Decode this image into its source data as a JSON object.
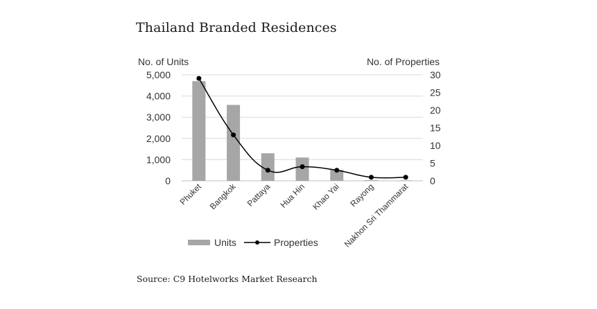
{
  "chart_data": {
    "type": "bar",
    "title": "Thailand Branded Residences",
    "source": "Source: C9 Hotelworks Market Research",
    "categories": [
      "Phuket",
      "Bangkok",
      "Pattaya",
      "Hua Hin",
      "Khao Yai",
      "Rayong",
      "Nakhon Sri Thammarat"
    ],
    "ylabel_left": "No. of Units",
    "ylabel_right": "No. of Properties",
    "ylim_left": [
      0,
      5000
    ],
    "ylim_right": [
      0,
      30
    ],
    "yticks_left": [
      "0",
      "1,000",
      "2,000",
      "3,000",
      "4,000",
      "5,000"
    ],
    "yticks_right": [
      "0",
      "5",
      "10",
      "15",
      "20",
      "25",
      "30"
    ],
    "grid": true,
    "legend_position": "bottom",
    "series": [
      {
        "name": "Units",
        "kind": "bar",
        "axis": "left",
        "color": "#a6a6a6",
        "values": [
          4700,
          3580,
          1300,
          1100,
          520,
          30,
          20
        ]
      },
      {
        "name": "Properties",
        "kind": "line",
        "axis": "right",
        "color": "#000000",
        "values": [
          29,
          13,
          3,
          4,
          3,
          1,
          1
        ]
      }
    ]
  }
}
